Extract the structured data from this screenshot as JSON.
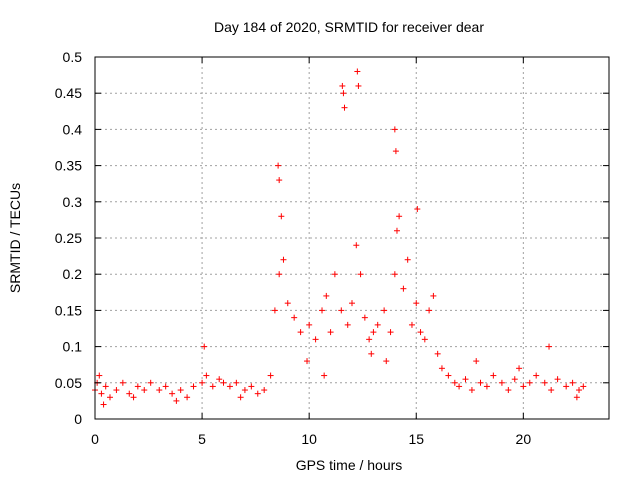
{
  "chart_data": {
    "type": "scatter",
    "title": "Day 184 of 2020, SRMTID for receiver dear",
    "xlabel": "GPS time / hours",
    "ylabel": "SRMTID / TECUs",
    "xlim": [
      0,
      24
    ],
    "ylim": [
      0,
      0.5
    ],
    "xticks": [
      0,
      5,
      10,
      15,
      20
    ],
    "xtick_labels": [
      "0",
      "5",
      "10",
      "15",
      "20"
    ],
    "yticks": [
      0,
      0.05,
      0.1,
      0.15,
      0.2,
      0.25,
      0.3,
      0.35,
      0.4,
      0.45,
      0.5
    ],
    "ytick_labels": [
      "0",
      "0.05",
      "0.1",
      "0.15",
      "0.2",
      "0.25",
      "0.3",
      "0.35",
      "0.4",
      "0.45",
      "0.5"
    ],
    "grid": true,
    "marker": "+",
    "marker_color": "#ff0000",
    "series": [
      {
        "name": "SRMTID",
        "x": [
          0.0,
          0.1,
          0.2,
          0.3,
          0.5,
          0.7,
          1.0,
          1.3,
          1.6,
          2.0,
          2.3,
          2.6,
          3.0,
          3.3,
          3.6,
          4.0,
          4.3,
          4.6,
          5.0,
          5.2,
          5.5,
          5.8,
          6.0,
          6.3,
          6.6,
          7.0,
          7.3,
          7.6,
          7.9,
          8.2,
          8.4,
          8.6,
          8.8,
          9.0,
          9.3,
          9.6,
          10.0,
          10.3,
          10.6,
          10.8,
          11.0,
          11.2,
          11.5,
          11.8,
          12.0,
          12.2,
          12.4,
          12.6,
          12.8,
          13.0,
          13.2,
          13.5,
          13.8,
          14.0,
          14.1,
          14.2,
          14.4,
          14.6,
          14.8,
          15.0,
          15.2,
          15.4,
          15.6,
          15.8,
          16.0,
          16.2,
          16.5,
          16.8,
          17.0,
          17.3,
          17.6,
          18.0,
          18.3,
          18.6,
          19.0,
          19.3,
          19.6,
          20.0,
          20.3,
          20.6,
          21.0,
          21.3,
          21.6,
          22.0,
          22.3,
          22.6,
          22.8,
          8.55,
          8.6,
          8.7,
          11.55,
          11.6,
          11.65,
          12.25,
          12.3,
          14.0,
          14.05,
          15.05,
          0.4,
          1.8,
          3.8,
          5.1,
          6.8,
          9.9,
          10.7,
          12.9,
          13.6,
          17.8,
          19.8,
          21.2,
          22.5
        ],
        "y": [
          0.04,
          0.05,
          0.06,
          0.035,
          0.045,
          0.03,
          0.04,
          0.05,
          0.035,
          0.045,
          0.04,
          0.05,
          0.04,
          0.045,
          0.035,
          0.04,
          0.03,
          0.045,
          0.05,
          0.06,
          0.045,
          0.055,
          0.05,
          0.045,
          0.05,
          0.04,
          0.045,
          0.035,
          0.04,
          0.06,
          0.15,
          0.2,
          0.22,
          0.16,
          0.14,
          0.12,
          0.13,
          0.11,
          0.15,
          0.17,
          0.12,
          0.2,
          0.15,
          0.13,
          0.16,
          0.24,
          0.2,
          0.14,
          0.11,
          0.12,
          0.13,
          0.15,
          0.12,
          0.2,
          0.26,
          0.28,
          0.18,
          0.22,
          0.13,
          0.16,
          0.12,
          0.11,
          0.15,
          0.17,
          0.09,
          0.07,
          0.06,
          0.05,
          0.045,
          0.055,
          0.04,
          0.05,
          0.045,
          0.06,
          0.05,
          0.04,
          0.055,
          0.045,
          0.05,
          0.06,
          0.05,
          0.04,
          0.055,
          0.045,
          0.05,
          0.04,
          0.045,
          0.35,
          0.33,
          0.28,
          0.46,
          0.45,
          0.43,
          0.48,
          0.46,
          0.4,
          0.37,
          0.29,
          0.02,
          0.03,
          0.025,
          0.1,
          0.03,
          0.08,
          0.06,
          0.09,
          0.08,
          0.08,
          0.07,
          0.1,
          0.03
        ]
      }
    ]
  }
}
